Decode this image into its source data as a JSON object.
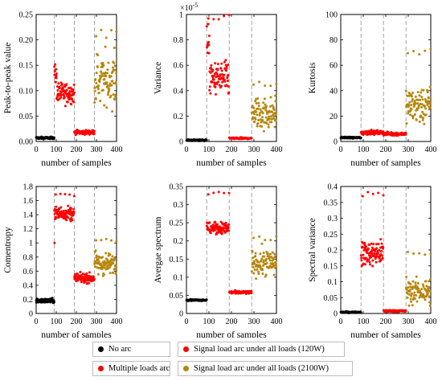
{
  "chart_data": [
    {
      "type": "scatter",
      "ylabel": "Peak-to-peak value",
      "xlabel": "number of samples",
      "multiplier": "",
      "xlim": [
        0,
        400
      ],
      "xticks": [
        0,
        100,
        200,
        300,
        400
      ],
      "ylim": [
        0,
        0.25
      ],
      "yticks": [
        0,
        0.05,
        0.1,
        0.15,
        0.2,
        0.25
      ],
      "ytick_labels": [
        "0.00",
        "0.05",
        "0.10",
        "0.15",
        "0.20",
        "0.25"
      ],
      "vlines": [
        90,
        190,
        290
      ],
      "series": [
        {
          "key": "no_arc",
          "x_range": [
            0,
            90
          ],
          "y_base": 0.007,
          "y_spread": 0.002
        },
        {
          "key": "multi",
          "x_range": [
            90,
            190
          ],
          "y_base": 0.095,
          "y_spread": 0.02,
          "y_head": 0.13
        },
        {
          "key": "s120",
          "x_range": [
            190,
            290
          ],
          "y_base": 0.018,
          "y_spread": 0.004
        },
        {
          "key": "s2100",
          "x_range": [
            290,
            400
          ],
          "y_base": 0.12,
          "y_spread": 0.05,
          "y_max": 0.22
        }
      ]
    },
    {
      "type": "scatter",
      "ylabel": "Variance",
      "xlabel": "number of samples",
      "multiplier": "×10",
      "multiplier_exp": "-5",
      "xlim": [
        0,
        400
      ],
      "xticks": [
        0,
        100,
        200,
        300,
        400
      ],
      "ylim": [
        0,
        1
      ],
      "yticks": [
        0,
        0.2,
        0.4,
        0.6,
        0.8,
        1
      ],
      "ytick_labels": [
        "0",
        "0.2",
        "0.4",
        "0.6",
        "0.8",
        "1"
      ],
      "vlines": [
        90,
        190,
        290
      ],
      "series": [
        {
          "key": "no_arc",
          "x_range": [
            0,
            90
          ],
          "y_base": 0.01,
          "y_spread": 0.006
        },
        {
          "key": "multi",
          "x_range": [
            90,
            190
          ],
          "y_base": 0.5,
          "y_spread": 0.12,
          "y_head": 0.8,
          "y_max": 1.0
        },
        {
          "key": "s120",
          "x_range": [
            190,
            290
          ],
          "y_base": 0.025,
          "y_spread": 0.006
        },
        {
          "key": "s2100",
          "x_range": [
            290,
            400
          ],
          "y_base": 0.22,
          "y_spread": 0.12,
          "y_max": 0.48
        }
      ]
    },
    {
      "type": "scatter",
      "ylabel": "Kurtosis",
      "xlabel": "number of samples",
      "multiplier": "",
      "xlim": [
        0,
        400
      ],
      "xticks": [
        0,
        100,
        200,
        300,
        400
      ],
      "ylim": [
        0,
        100
      ],
      "yticks": [
        0,
        20,
        40,
        60,
        80,
        100
      ],
      "ytick_labels": [
        "0",
        "20",
        "40",
        "60",
        "80",
        "100"
      ],
      "vlines": [
        90,
        190,
        290
      ],
      "series": [
        {
          "key": "no_arc",
          "x_range": [
            0,
            90
          ],
          "y_base": 3,
          "y_spread": 0.6
        },
        {
          "key": "multi",
          "x_range": [
            90,
            190
          ],
          "y_base": 7,
          "y_spread": 1.5
        },
        {
          "key": "s120",
          "x_range": [
            190,
            290
          ],
          "y_base": 6,
          "y_spread": 1.2
        },
        {
          "key": "s2100",
          "x_range": [
            290,
            400
          ],
          "y_base": 28,
          "y_spread": 14,
          "y_max": 73
        }
      ]
    },
    {
      "type": "scatter",
      "ylabel": "Comentropy",
      "xlabel": "number of samples",
      "multiplier": "",
      "xlim": [
        0,
        400
      ],
      "xticks": [
        0,
        100,
        200,
        300,
        400
      ],
      "ylim": [
        0,
        1.8
      ],
      "yticks": [
        0,
        0.2,
        0.4,
        0.6,
        0.8,
        1,
        1.2,
        1.4,
        1.6,
        1.8
      ],
      "ytick_labels": [
        "0",
        "0.2",
        "0.4",
        "0.6",
        "0.8",
        "1",
        "1.2",
        "1.4",
        "1.6",
        "1.8"
      ],
      "vlines": [
        90,
        190,
        290
      ],
      "series": [
        {
          "key": "no_arc",
          "x_range": [
            0,
            90
          ],
          "y_base": 0.18,
          "y_spread": 0.03
        },
        {
          "key": "multi",
          "x_range": [
            90,
            190
          ],
          "y_base": 1.42,
          "y_spread": 0.1,
          "y_min": 1.0,
          "y_max": 1.7
        },
        {
          "key": "s120",
          "x_range": [
            190,
            290
          ],
          "y_base": 0.5,
          "y_spread": 0.06
        },
        {
          "key": "s2100",
          "x_range": [
            290,
            400
          ],
          "y_base": 0.7,
          "y_spread": 0.15,
          "y_max": 1.08
        }
      ]
    },
    {
      "type": "scatter",
      "ylabel": "Avergae spectrum",
      "xlabel": "number of samples",
      "multiplier": "",
      "xlim": [
        0,
        400
      ],
      "xticks": [
        0,
        100,
        200,
        300,
        400
      ],
      "ylim": [
        0,
        0.35
      ],
      "yticks": [
        0,
        0.05,
        0.1,
        0.15,
        0.2,
        0.25,
        0.3,
        0.35
      ],
      "ytick_labels": [
        "0",
        "0.05",
        "0.1",
        "0.15",
        "0.2",
        "0.25",
        "0.3",
        "0.35"
      ],
      "vlines": [
        90,
        190,
        290
      ],
      "series": [
        {
          "key": "no_arc",
          "x_range": [
            0,
            90
          ],
          "y_base": 0.037,
          "y_spread": 0.002
        },
        {
          "key": "multi",
          "x_range": [
            90,
            190
          ],
          "y_base": 0.235,
          "y_spread": 0.018,
          "y_max": 0.335
        },
        {
          "key": "s120",
          "x_range": [
            190,
            290
          ],
          "y_base": 0.058,
          "y_spread": 0.004
        },
        {
          "key": "s2100",
          "x_range": [
            290,
            400
          ],
          "y_base": 0.14,
          "y_spread": 0.035,
          "y_max": 0.215
        }
      ]
    },
    {
      "type": "scatter",
      "ylabel": "Spectral variance",
      "xlabel": "number of samples",
      "multiplier": "",
      "xlim": [
        0,
        400
      ],
      "xticks": [
        0,
        100,
        200,
        300,
        400
      ],
      "ylim": [
        0,
        0.4
      ],
      "yticks": [
        0,
        0.05,
        0.1,
        0.15,
        0.2,
        0.25,
        0.3,
        0.35,
        0.4
      ],
      "ytick_labels": [
        "0",
        "0.05",
        "0.1",
        "0.15",
        "0.2",
        "0.25",
        "0.3",
        "0.35",
        "0.4"
      ],
      "vlines": [
        90,
        190,
        290
      ],
      "series": [
        {
          "key": "no_arc",
          "x_range": [
            0,
            90
          ],
          "y_base": 0.004,
          "y_spread": 0.002
        },
        {
          "key": "multi",
          "x_range": [
            90,
            190
          ],
          "y_base": 0.19,
          "y_spread": 0.04,
          "y_max": 0.385
        },
        {
          "key": "s120",
          "x_range": [
            190,
            290
          ],
          "y_base": 0.008,
          "y_spread": 0.003
        },
        {
          "key": "s2100",
          "x_range": [
            290,
            400
          ],
          "y_base": 0.07,
          "y_spread": 0.04,
          "y_max": 0.195
        }
      ]
    }
  ],
  "legend": {
    "no_arc": {
      "label": "No arc",
      "color": "#000000"
    },
    "multi": {
      "label": "Multiple loads arc",
      "color": "#ff0000"
    },
    "s120": {
      "label": "Signal load arc under all loads (120W)",
      "color": "#ff0000"
    },
    "s2100": {
      "label": "Signal load arc under all loads (2100W)",
      "color": "#b8860b"
    }
  }
}
